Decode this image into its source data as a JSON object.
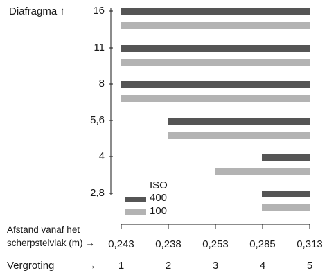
{
  "chart_data": {
    "type": "bar",
    "orientation": "horizontal-range",
    "ylabel": "Diafragma",
    "apertures": [
      "16",
      "11",
      "8",
      "5,6",
      "4",
      "2,8"
    ],
    "distance_label": "Afstand vanaf het scherpstelvlak (m)",
    "distance_label_lines": [
      "Afstand vanaf het",
      "scherpstelvlak (m)"
    ],
    "distances": [
      "0,243",
      "0,238",
      "0,253",
      "0,285",
      "0,313"
    ],
    "magnification_label": "Vergroting",
    "magnifications": [
      "1",
      "2",
      "3",
      "4",
      "5"
    ],
    "legend": {
      "title": "ISO",
      "position": "bottom-left"
    },
    "series": [
      {
        "name": "400",
        "color": "#555555",
        "ranges": [
          [
            1,
            5
          ],
          [
            1,
            5
          ],
          [
            1,
            5
          ],
          [
            2,
            5
          ],
          [
            4,
            5
          ],
          [
            4,
            5
          ]
        ]
      },
      {
        "name": "100",
        "color": "#b3b3b3",
        "ranges": [
          [
            1,
            5
          ],
          [
            1,
            5
          ],
          [
            1,
            5
          ],
          [
            2,
            5
          ],
          [
            3,
            5
          ],
          [
            4,
            5
          ]
        ]
      }
    ],
    "arrow_symbol": "→",
    "up_arrow_symbol": "↑"
  }
}
